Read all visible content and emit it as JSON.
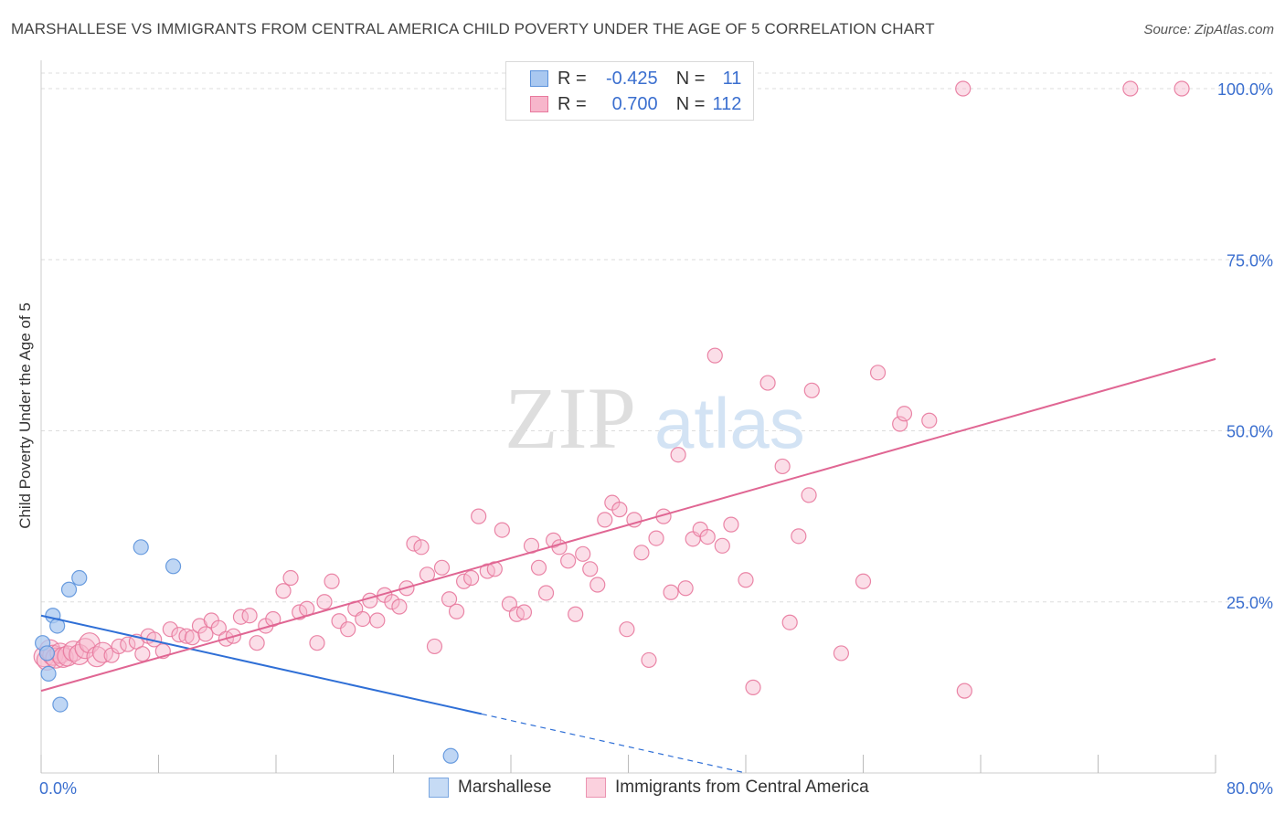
{
  "title": "MARSHALLESE VS IMMIGRANTS FROM CENTRAL AMERICA CHILD POVERTY UNDER THE AGE OF 5 CORRELATION CHART",
  "source": "Source: ZipAtlas.com",
  "watermark": {
    "part1": "ZIP",
    "part2": "atlas"
  },
  "legend": {
    "rows": [
      {
        "r_label": "R =",
        "r_value": "-0.425",
        "n_label": "N =",
        "n_value": "11"
      },
      {
        "r_label": "R =",
        "r_value": "0.700",
        "n_label": "N =",
        "n_value": "112"
      }
    ]
  },
  "bottom_legend": [
    "Marshallese",
    "Immigrants from Central America"
  ],
  "colors": {
    "blue_fill": "#a9c8f0",
    "blue_stroke": "#5b92dc",
    "blue_line": "#2f6fd6",
    "pink_fill": "#f7b6cb",
    "pink_stroke": "#e8799d",
    "pink_line": "#e06693",
    "tick_text": "#3b6fcf",
    "grid": "#dddddd"
  },
  "chart_data": {
    "type": "scatter",
    "title": "MARSHALLESE VS IMMIGRANTS FROM CENTRAL AMERICA CHILD POVERTY UNDER THE AGE OF 5 CORRELATION CHART",
    "xlabel": "",
    "ylabel": "Child Poverty Under the Age of 5",
    "xlim": [
      0,
      80
    ],
    "ylim": [
      0,
      102
    ],
    "x_tick_labels": [
      "0.0%",
      "80.0%"
    ],
    "y_ticks": [
      25,
      50,
      75,
      100
    ],
    "y_tick_labels": [
      "25.0%",
      "50.0%",
      "75.0%",
      "100.0%"
    ],
    "grid": true,
    "legend_position": "top-center",
    "series": [
      {
        "name": "Marshallese",
        "r": -0.425,
        "n": 11,
        "trend": {
          "x0": 0,
          "y0": 23.0,
          "x_solid_end": 30,
          "x1": 48,
          "y1": 0
        },
        "points": [
          [
            0.1,
            19.0
          ],
          [
            0.4,
            17.5
          ],
          [
            0.5,
            14.5
          ],
          [
            0.8,
            23.0
          ],
          [
            1.1,
            21.5
          ],
          [
            1.3,
            10.0
          ],
          [
            1.9,
            26.8
          ],
          [
            2.6,
            28.5
          ],
          [
            6.8,
            33.0
          ],
          [
            9.0,
            30.2
          ],
          [
            27.9,
            2.5
          ]
        ]
      },
      {
        "name": "Immigrants from Central America",
        "r": 0.7,
        "n": 112,
        "trend": {
          "x0": 0,
          "y0": 12.0,
          "x1": 80,
          "y1": 60.5
        },
        "points": [
          [
            0.2,
            17.0
          ],
          [
            0.4,
            16.5
          ],
          [
            0.6,
            18.0
          ],
          [
            0.8,
            17.2
          ],
          [
            1.0,
            16.8
          ],
          [
            1.3,
            17.5
          ],
          [
            1.5,
            16.9
          ],
          [
            1.8,
            17.1
          ],
          [
            2.2,
            17.8
          ],
          [
            2.6,
            17.3
          ],
          [
            3.0,
            18.2
          ],
          [
            3.3,
            19.0
          ],
          [
            3.8,
            17.0
          ],
          [
            4.2,
            17.6
          ],
          [
            4.8,
            17.2
          ],
          [
            5.3,
            18.5
          ],
          [
            5.9,
            18.8
          ],
          [
            6.5,
            19.2
          ],
          [
            6.9,
            17.4
          ],
          [
            7.3,
            20.0
          ],
          [
            7.7,
            19.5
          ],
          [
            8.3,
            17.8
          ],
          [
            8.8,
            21.0
          ],
          [
            9.4,
            20.2
          ],
          [
            9.9,
            20.0
          ],
          [
            10.3,
            19.8
          ],
          [
            10.8,
            21.5
          ],
          [
            11.2,
            20.3
          ],
          [
            11.6,
            22.3
          ],
          [
            12.1,
            21.2
          ],
          [
            12.6,
            19.6
          ],
          [
            13.1,
            20.0
          ],
          [
            13.6,
            22.8
          ],
          [
            14.2,
            23.0
          ],
          [
            14.7,
            19.0
          ],
          [
            15.3,
            21.5
          ],
          [
            15.8,
            22.5
          ],
          [
            16.5,
            26.6
          ],
          [
            17.0,
            28.5
          ],
          [
            17.6,
            23.5
          ],
          [
            18.1,
            24.0
          ],
          [
            18.8,
            19.0
          ],
          [
            19.3,
            25.0
          ],
          [
            19.8,
            28.0
          ],
          [
            20.3,
            22.2
          ],
          [
            20.9,
            21.0
          ],
          [
            21.4,
            24.0
          ],
          [
            21.9,
            22.5
          ],
          [
            22.4,
            25.2
          ],
          [
            22.9,
            22.3
          ],
          [
            23.4,
            26.0
          ],
          [
            23.9,
            25.0
          ],
          [
            24.4,
            24.3
          ],
          [
            24.9,
            27.0
          ],
          [
            25.4,
            33.5
          ],
          [
            25.9,
            33.0
          ],
          [
            26.3,
            29.0
          ],
          [
            26.8,
            18.5
          ],
          [
            27.3,
            30.0
          ],
          [
            27.8,
            25.4
          ],
          [
            28.3,
            23.6
          ],
          [
            28.8,
            28.0
          ],
          [
            29.3,
            28.5
          ],
          [
            29.8,
            37.5
          ],
          [
            30.4,
            29.5
          ],
          [
            30.9,
            29.8
          ],
          [
            31.4,
            35.5
          ],
          [
            31.9,
            24.7
          ],
          [
            32.4,
            23.2
          ],
          [
            32.9,
            23.5
          ],
          [
            33.4,
            33.2
          ],
          [
            33.9,
            30.0
          ],
          [
            34.4,
            26.3
          ],
          [
            34.9,
            34.0
          ],
          [
            35.3,
            33.0
          ],
          [
            35.9,
            31.0
          ],
          [
            36.4,
            23.2
          ],
          [
            36.9,
            32.0
          ],
          [
            37.4,
            29.8
          ],
          [
            37.9,
            27.5
          ],
          [
            38.4,
            37.0
          ],
          [
            38.9,
            39.5
          ],
          [
            39.4,
            38.5
          ],
          [
            39.9,
            21.0
          ],
          [
            40.4,
            37.0
          ],
          [
            40.9,
            32.2
          ],
          [
            41.4,
            16.5
          ],
          [
            41.9,
            34.3
          ],
          [
            42.4,
            37.5
          ],
          [
            42.9,
            26.4
          ],
          [
            43.4,
            46.5
          ],
          [
            43.9,
            27.0
          ],
          [
            44.4,
            34.2
          ],
          [
            44.9,
            35.6
          ],
          [
            45.4,
            34.5
          ],
          [
            45.9,
            61.0
          ],
          [
            46.4,
            33.2
          ],
          [
            47.0,
            36.3
          ],
          [
            48.0,
            28.2
          ],
          [
            48.5,
            12.5
          ],
          [
            49.5,
            57.0
          ],
          [
            50.5,
            44.8
          ],
          [
            51.0,
            22.0
          ],
          [
            51.6,
            34.6
          ],
          [
            52.3,
            40.6
          ],
          [
            52.5,
            55.9
          ],
          [
            54.5,
            17.5
          ],
          [
            56.0,
            28.0
          ],
          [
            57.0,
            58.5
          ],
          [
            58.5,
            51.0
          ],
          [
            58.8,
            52.5
          ],
          [
            60.5,
            51.5
          ],
          [
            62.9,
            12.0
          ],
          [
            62.8,
            100.0
          ],
          [
            74.2,
            100.0
          ],
          [
            77.7,
            100.0
          ]
        ]
      }
    ]
  }
}
